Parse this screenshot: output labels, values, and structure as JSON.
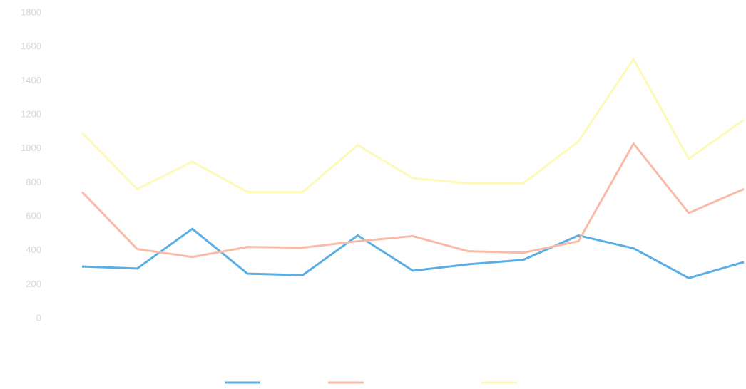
{
  "chart_data": {
    "type": "line",
    "categories": [
      null,
      null,
      null,
      null,
      null,
      null,
      null,
      null,
      null,
      null,
      null,
      null,
      null
    ],
    "series": [
      {
        "name": null,
        "color": "#5aaee6",
        "values": [
          306,
          294,
          528,
          264,
          255,
          489,
          281,
          319,
          345,
          489,
          413,
          238,
          332
        ]
      },
      {
        "name": null,
        "color": "#f9bba8",
        "values": [
          745,
          409,
          362,
          421,
          417,
          455,
          485,
          396,
          387,
          455,
          1030,
          621,
          762
        ]
      },
      {
        "name": null,
        "color": "#fdfab8",
        "values": [
          1094,
          762,
          923,
          745,
          745,
          1021,
          826,
          796,
          796,
          1043,
          1528,
          940,
          1170
        ]
      }
    ],
    "ylim": [
      0,
      1800
    ],
    "yticks": [
      0,
      200,
      400,
      600,
      800,
      1000,
      1200,
      1400,
      1600,
      1800
    ],
    "grid": false
  }
}
